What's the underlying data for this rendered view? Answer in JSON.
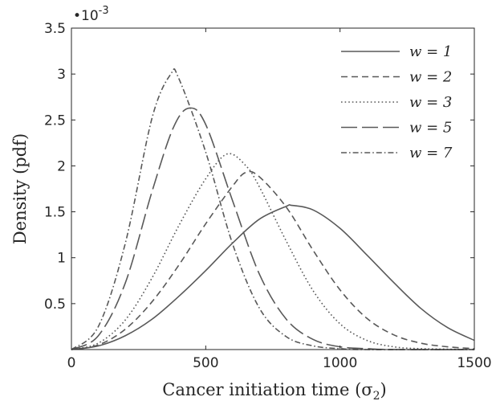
{
  "chart_data": {
    "type": "line",
    "xlabel": "Cancer initiation time (σ",
    "xlabel_sub": "2",
    "xlabel_close": ")",
    "ylabel": "Density (pdf)",
    "y_exponent_base": "•10",
    "y_exponent_power": "-3",
    "xlim": [
      0,
      1500
    ],
    "ylim": [
      0,
      3.5
    ],
    "x_ticks": [
      0,
      500,
      1000,
      1500
    ],
    "x_tick_labels": [
      "0",
      "500",
      "1000",
      "1500"
    ],
    "y_ticks": [
      0.5,
      1,
      1.5,
      2,
      2.5,
      3,
      3.5
    ],
    "y_tick_labels": [
      "0.5",
      "1",
      "1.5",
      "2",
      "2.5",
      "3",
      "3.5"
    ],
    "grid": false,
    "legend_position": "top-right",
    "line_color": "#595959",
    "series": [
      {
        "name": "w = 1",
        "style": "solid",
        "x": [
          0,
          100,
          200,
          300,
          400,
          500,
          600,
          700,
          800,
          820,
          900,
          1000,
          1100,
          1200,
          1300,
          1400,
          1500
        ],
        "y": [
          0,
          0.04,
          0.15,
          0.33,
          0.58,
          0.86,
          1.16,
          1.42,
          1.56,
          1.57,
          1.52,
          1.32,
          1.03,
          0.73,
          0.45,
          0.24,
          0.1
        ]
      },
      {
        "name": "w = 2",
        "style": "dashed",
        "x": [
          0,
          100,
          200,
          300,
          400,
          500,
          600,
          650,
          700,
          800,
          900,
          1000,
          1100,
          1200,
          1300,
          1400,
          1500
        ],
        "y": [
          0,
          0.05,
          0.22,
          0.52,
          0.92,
          1.37,
          1.78,
          1.93,
          1.88,
          1.55,
          1.08,
          0.65,
          0.34,
          0.16,
          0.07,
          0.03,
          0.01
        ]
      },
      {
        "name": "w = 3",
        "style": "dotted",
        "x": [
          0,
          100,
          200,
          300,
          400,
          500,
          580,
          650,
          700,
          800,
          900,
          1000,
          1100,
          1200,
          1300,
          1500
        ],
        "y": [
          0,
          0.07,
          0.32,
          0.78,
          1.35,
          1.86,
          2.13,
          2.0,
          1.77,
          1.18,
          0.64,
          0.28,
          0.1,
          0.03,
          0.01,
          0
        ]
      },
      {
        "name": "w = 5",
        "style": "longdash",
        "x": [
          0,
          100,
          200,
          300,
          380,
          440,
          500,
          600,
          700,
          800,
          900,
          1000,
          1100,
          1200,
          1500
        ],
        "y": [
          0,
          0.15,
          0.72,
          1.72,
          2.42,
          2.63,
          2.45,
          1.62,
          0.82,
          0.33,
          0.11,
          0.03,
          0.01,
          0,
          0
        ]
      },
      {
        "name": "w = 7",
        "style": "dashdot",
        "x": [
          0,
          100,
          200,
          300,
          370,
          400,
          500,
          600,
          700,
          800,
          900,
          1000,
          1100,
          1500
        ],
        "y": [
          0,
          0.25,
          1.15,
          2.52,
          3.0,
          2.95,
          2.15,
          1.15,
          0.45,
          0.14,
          0.04,
          0.01,
          0,
          0
        ]
      }
    ]
  }
}
